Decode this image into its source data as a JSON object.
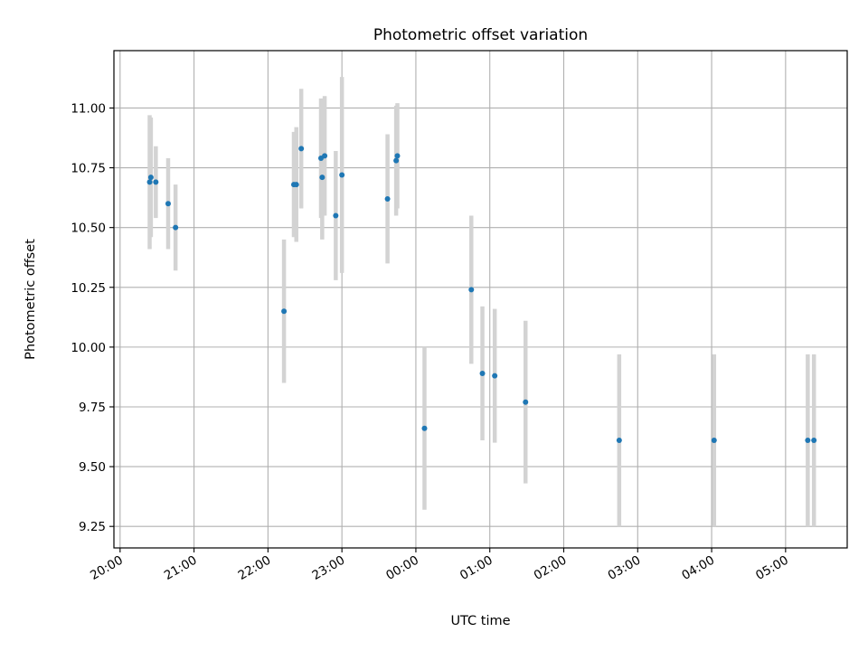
{
  "chart_data": {
    "type": "scatter",
    "title": "Photometric offset variation",
    "xlabel": "UTC time",
    "ylabel": "Photometric offset",
    "x_tick_labels": [
      "20:00",
      "21:00",
      "22:00",
      "23:00",
      "00:00",
      "01:00",
      "02:00",
      "03:00",
      "04:00",
      "05:00"
    ],
    "y_tick_labels": [
      "9.25",
      "9.50",
      "9.75",
      "10.00",
      "10.25",
      "10.50",
      "10.75",
      "11.00"
    ],
    "y_ticks": [
      9.25,
      9.5,
      9.75,
      10.0,
      10.25,
      10.5,
      10.75,
      11.0
    ],
    "xlim": [
      "19:55",
      "05:50"
    ],
    "ylim": [
      9.16,
      11.24
    ],
    "grid": true,
    "colors": {
      "point": "#1f77b4",
      "errorbar": "#d3d3d3",
      "grid": "#b0b0b0"
    },
    "points": [
      {
        "x": "20:24",
        "y": 10.69,
        "yerr": 0.28
      },
      {
        "x": "20:25",
        "y": 10.71,
        "yerr": 0.25
      },
      {
        "x": "20:29",
        "y": 10.69,
        "yerr": 0.15
      },
      {
        "x": "20:39",
        "y": 10.6,
        "yerr": 0.19
      },
      {
        "x": "20:45",
        "y": 10.5,
        "yerr": 0.18
      },
      {
        "x": "22:13",
        "y": 10.15,
        "yerr": 0.3
      },
      {
        "x": "22:21",
        "y": 10.68,
        "yerr": 0.22
      },
      {
        "x": "22:23",
        "y": 10.68,
        "yerr": 0.24
      },
      {
        "x": "22:27",
        "y": 10.83,
        "yerr": 0.25
      },
      {
        "x": "22:43",
        "y": 10.79,
        "yerr": 0.25
      },
      {
        "x": "22:44",
        "y": 10.71,
        "yerr": 0.26
      },
      {
        "x": "22:46",
        "y": 10.8,
        "yerr": 0.25
      },
      {
        "x": "22:55",
        "y": 10.55,
        "yerr": 0.27
      },
      {
        "x": "23:00",
        "y": 10.72,
        "yerr": 0.41
      },
      {
        "x": "23:37",
        "y": 10.62,
        "yerr": 0.27
      },
      {
        "x": "23:44",
        "y": 10.78,
        "yerr": 0.23
      },
      {
        "x": "23:45",
        "y": 10.8,
        "yerr": 0.22
      },
      {
        "x": "00:07",
        "y": 9.66,
        "yerr": 0.34
      },
      {
        "x": "00:45",
        "y": 10.24,
        "yerr": 0.31
      },
      {
        "x": "00:54",
        "y": 9.89,
        "yerr": 0.28
      },
      {
        "x": "01:04",
        "y": 9.88,
        "yerr": 0.28
      },
      {
        "x": "01:29",
        "y": 9.77,
        "yerr": 0.34
      },
      {
        "x": "02:45",
        "y": 9.61,
        "yerr": 0.36
      },
      {
        "x": "04:02",
        "y": 9.61,
        "yerr": 0.36
      },
      {
        "x": "05:18",
        "y": 9.61,
        "yerr": 0.36
      },
      {
        "x": "05:23",
        "y": 9.61,
        "yerr": 0.36
      }
    ]
  }
}
